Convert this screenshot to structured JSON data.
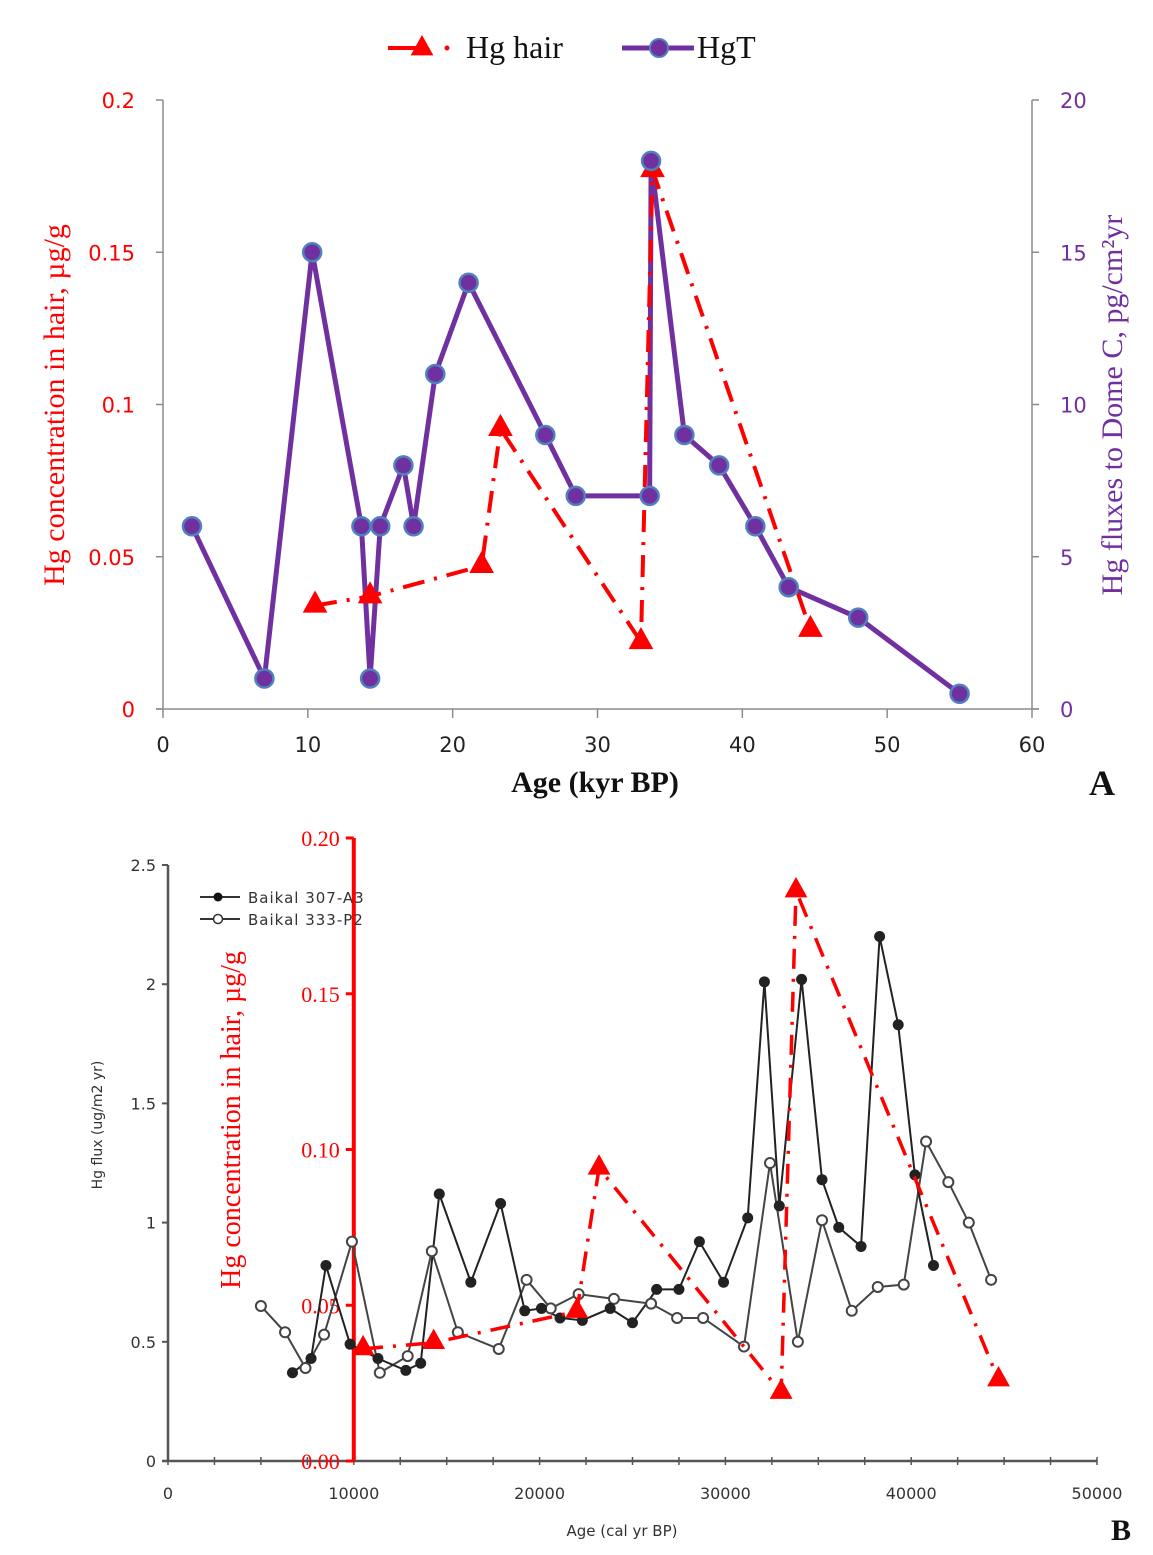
{
  "chart_data": [
    {
      "panel_label": "A",
      "type": "line",
      "xlabel": "Age (kyr BP)",
      "xlim": [
        0,
        60
      ],
      "xticks": [
        "0",
        "10",
        "20",
        "30",
        "40",
        "50",
        "60"
      ],
      "ylabel_left": "Hg concentration  in hair, µg/g",
      "ylim_left": [
        0,
        0.2
      ],
      "yticks_left": [
        "0",
        "0.05",
        "0.1",
        "0.15",
        "0.2"
      ],
      "ylabel_right": "Hg fluxes to Dome C, pg/cm²yr",
      "ylim_right": [
        0,
        20
      ],
      "yticks_right": [
        "0",
        "5",
        "10",
        "15",
        "20"
      ],
      "legend_position": "top-center",
      "colors": {
        "hair": "#ff0000",
        "hgt": "#7030a0",
        "hgt_marker_edge": "#4f81bd"
      },
      "series": [
        {
          "name": "Hg hair",
          "axis": "left",
          "style": "dash-dot with triangle markers",
          "x": [
            10.5,
            14.3,
            22,
            23.3,
            33,
            33.8,
            44.7
          ],
          "y": [
            0.034,
            0.037,
            0.047,
            0.092,
            0.022,
            0.177,
            0.026
          ]
        },
        {
          "name": "HgT",
          "axis": "right",
          "style": "solid with circle markers",
          "x": [
            2,
            7,
            10.3,
            13.7,
            14.3,
            15,
            16.6,
            17.3,
            18.8,
            21.1,
            26.4,
            28.5,
            33.6,
            33.7,
            36,
            38.4,
            40.9,
            43.2,
            48,
            55
          ],
          "y": [
            6,
            1,
            15,
            6,
            1,
            6,
            8,
            6,
            11,
            14,
            9,
            7,
            7,
            18,
            9,
            8,
            6,
            4,
            3,
            0.5
          ]
        }
      ]
    },
    {
      "panel_label": "B",
      "type": "line",
      "xlabel": "Age (cal yr BP)",
      "xlim": [
        0,
        50000
      ],
      "xticks": [
        "0",
        "10000",
        "20000",
        "30000",
        "40000",
        "50000"
      ],
      "ylabel_left": "Hg flux (ug/m2 yr)",
      "ylim_left": [
        0,
        2.5
      ],
      "yticks_left": [
        "0",
        "0.5",
        "1",
        "1.5",
        "2",
        "2.5"
      ],
      "ylabel_overlay": "Hg concentration in hair, µg/g",
      "ylim_overlay": [
        0,
        0.2
      ],
      "yticks_overlay": [
        "0.00",
        "0.05",
        "0.10",
        "0.15",
        "0.20"
      ],
      "overlay_axis_x": 10000,
      "legend_position": "top-left",
      "colors": {
        "hair": "#ff0000",
        "baikal": "#222222",
        "baikal_open": "#444444"
      },
      "series": [
        {
          "name": "Baikal 307-A3",
          "axis": "left",
          "marker": "filled circle",
          "x": [
            6700,
            7700,
            8500,
            9800,
            11300,
            12800,
            13600,
            14600,
            16300,
            17900,
            19200,
            20100,
            21100,
            22300,
            23800,
            25000,
            26300,
            27500,
            28600,
            29900,
            31200,
            32100,
            32900,
            34100,
            35200,
            36100,
            37300,
            38300,
            39300,
            40200,
            41200
          ],
          "y": [
            0.37,
            0.43,
            0.82,
            0.49,
            0.43,
            0.38,
            0.41,
            1.12,
            0.75,
            1.08,
            0.63,
            0.64,
            0.6,
            0.59,
            0.64,
            0.58,
            0.72,
            0.72,
            0.92,
            0.75,
            1.02,
            2.01,
            1.07,
            2.02,
            1.18,
            0.98,
            0.9,
            2.2,
            1.83,
            1.2,
            0.82
          ]
        },
        {
          "name": "Baikal 333-P2",
          "axis": "left",
          "marker": "open circle",
          "x": [
            5000,
            6300,
            7400,
            8400,
            9900,
            11400,
            12900,
            14200,
            15600,
            17800,
            19300,
            20600,
            22100,
            24000,
            26000,
            27400,
            28800,
            31000,
            32400,
            33900,
            35200,
            36800,
            38200,
            39600,
            40800,
            42000,
            43100,
            44300
          ],
          "y": [
            0.65,
            0.54,
            0.39,
            0.53,
            0.92,
            0.37,
            0.44,
            0.88,
            0.54,
            0.47,
            0.76,
            0.64,
            0.7,
            0.68,
            0.66,
            0.6,
            0.6,
            0.48,
            1.25,
            0.5,
            1.01,
            0.63,
            0.73,
            0.74,
            1.34,
            1.17,
            1.0,
            0.76
          ]
        },
        {
          "name": "Hg hair",
          "axis": "overlay",
          "style": "dash-dot with triangle markers",
          "x": [
            10500,
            14300,
            22000,
            23200,
            33000,
            33800,
            44700
          ],
          "y": [
            0.036,
            0.038,
            0.048,
            0.094,
            0.022,
            0.183,
            0.026
          ]
        }
      ]
    }
  ]
}
